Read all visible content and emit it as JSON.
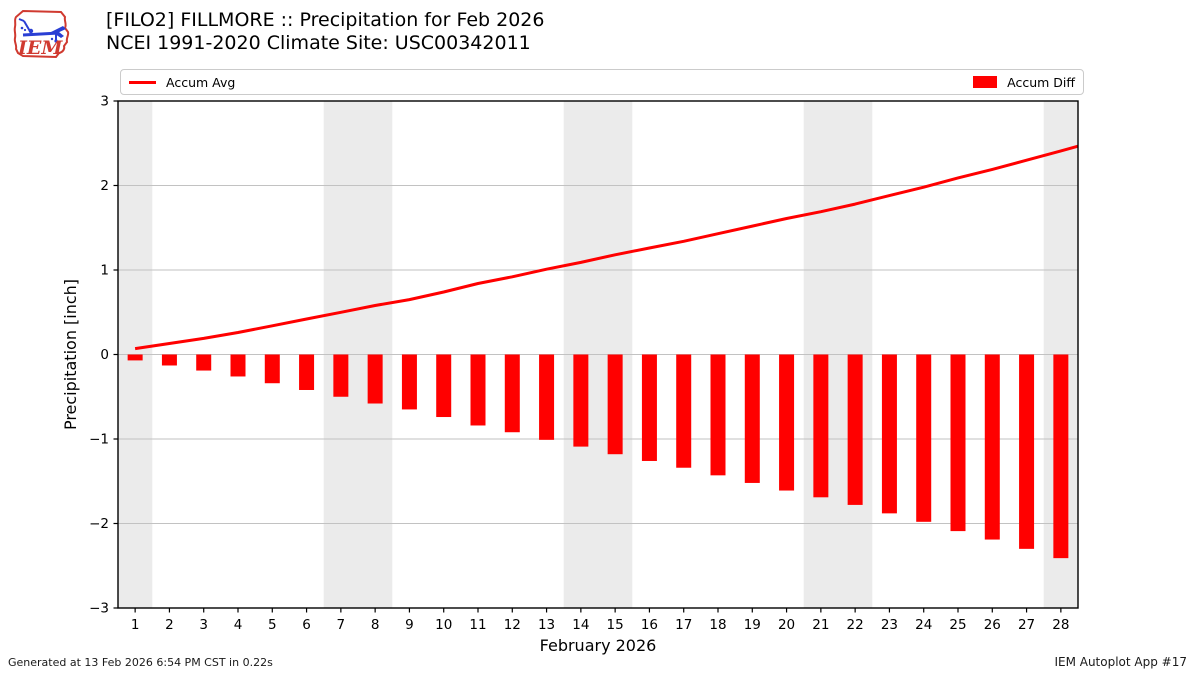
{
  "header": {
    "title_line1": "[FILO2] FILLMORE :: Precipitation for Feb 2026",
    "title_line2": "NCEI 1991-2020 Climate Site: USC00342011",
    "logo_text": "IEM"
  },
  "legend": {
    "items": [
      {
        "label": "Accum Avg",
        "swatch": "line"
      },
      {
        "label": "Accum Diff",
        "swatch": "patch"
      }
    ]
  },
  "footer": {
    "left": "Generated at 13 Feb 2026 6:54 PM CST in 0.22s",
    "right": "IEM Autoplot App #17"
  },
  "colors": {
    "accent_red": "#ff0000",
    "weekend_band": "#ebebeb",
    "gridline": "#c2c2c2",
    "logo_red": "#d03a30",
    "logo_blue": "#2a3fd4"
  },
  "chart_data": {
    "type": "bar",
    "x": [
      1,
      2,
      3,
      4,
      5,
      6,
      7,
      8,
      9,
      10,
      11,
      12,
      13,
      14,
      15,
      16,
      17,
      18,
      19,
      20,
      21,
      22,
      23,
      24,
      25,
      26,
      27,
      28
    ],
    "series": [
      {
        "name": "Accum Avg",
        "kind": "line",
        "color": "#ff0000",
        "values": [
          0.07,
          0.13,
          0.19,
          0.26,
          0.34,
          0.42,
          0.5,
          0.58,
          0.65,
          0.74,
          0.84,
          0.92,
          1.01,
          1.09,
          1.18,
          1.26,
          1.34,
          1.43,
          1.52,
          1.61,
          1.69,
          1.78,
          1.88,
          1.98,
          2.09,
          2.19,
          2.3,
          2.41
        ]
      },
      {
        "name": "Accum Diff",
        "kind": "bar",
        "color": "#ff0000",
        "values": [
          -0.07,
          -0.13,
          -0.19,
          -0.26,
          -0.34,
          -0.42,
          -0.5,
          -0.58,
          -0.65,
          -0.74,
          -0.84,
          -0.92,
          -1.01,
          -1.09,
          -1.18,
          -1.26,
          -1.34,
          -1.43,
          -1.52,
          -1.61,
          -1.69,
          -1.78,
          -1.88,
          -1.98,
          -2.09,
          -2.19,
          -2.3,
          -2.41
        ]
      }
    ],
    "xlabel": "February 2026",
    "ylabel": "Precipitation [inch]",
    "xlim": [
      0.5,
      28.5
    ],
    "ylim": [
      -3,
      3
    ],
    "yticks": [
      3,
      2,
      1,
      0,
      -1,
      -2,
      -3
    ],
    "xticks": [
      1,
      2,
      3,
      4,
      5,
      6,
      7,
      8,
      9,
      10,
      11,
      12,
      13,
      14,
      15,
      16,
      17,
      18,
      19,
      20,
      21,
      22,
      23,
      24,
      25,
      26,
      27,
      28
    ],
    "grid": "horizontal-only",
    "legend_position": "top-expanded",
    "weekend_bands": [
      [
        0.5,
        1.5
      ],
      [
        6.5,
        8.5
      ],
      [
        13.5,
        15.5
      ],
      [
        20.5,
        22.5
      ],
      [
        27.5,
        28.5
      ]
    ],
    "line_extends_to_right_edge": true
  }
}
